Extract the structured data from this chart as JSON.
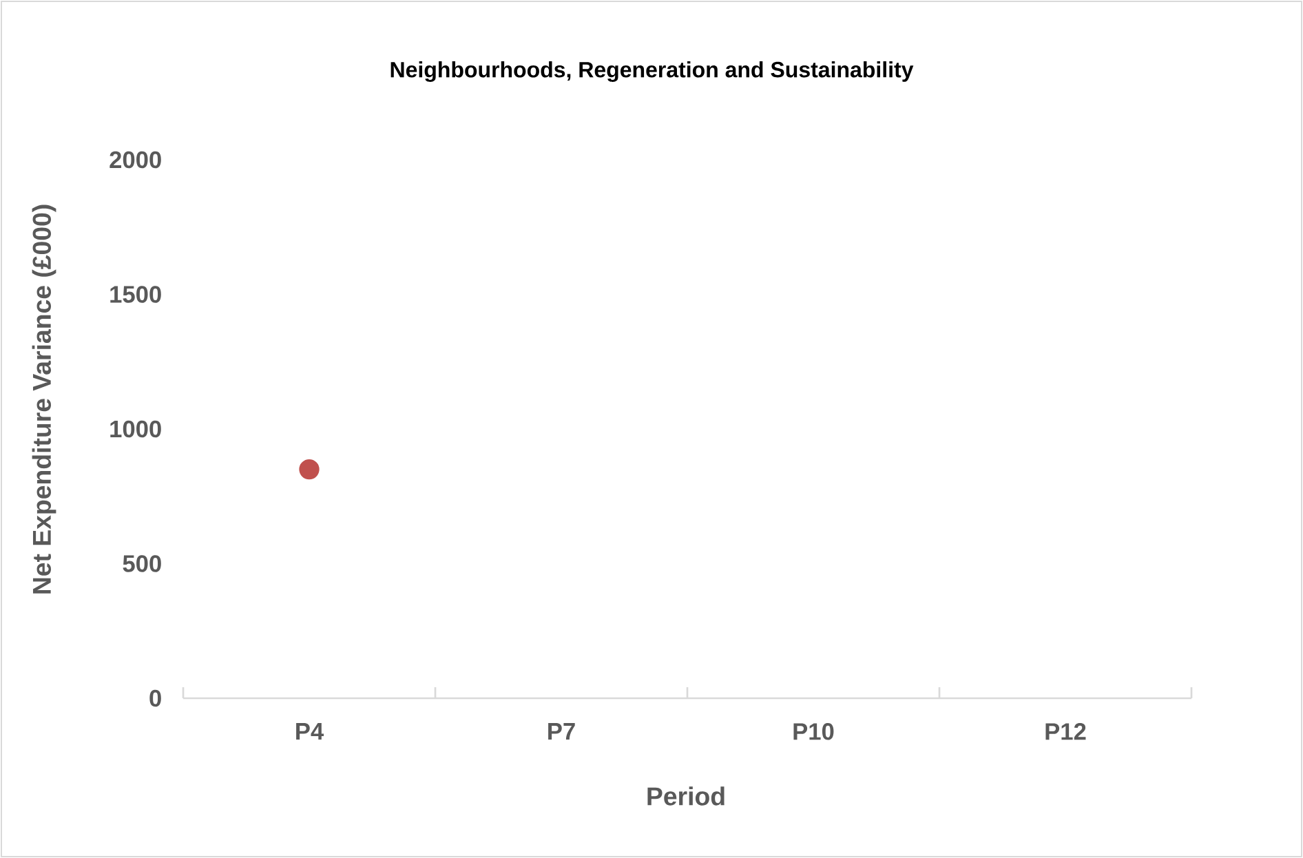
{
  "chart_data": {
    "type": "line",
    "title": "Neighbourhoods, Regeneration and Sustainability",
    "xlabel": "Period",
    "ylabel": "Net Expenditure Variance (£000)",
    "categories": [
      "P4",
      "P7",
      "P10",
      "P12"
    ],
    "series": [
      {
        "color": "#c0504d",
        "values": [
          850,
          null,
          null,
          null
        ]
      }
    ],
    "ylim": [
      0,
      2000
    ],
    "yticks": [
      0,
      500,
      1000,
      1500,
      2000
    ],
    "marker": "circle"
  }
}
